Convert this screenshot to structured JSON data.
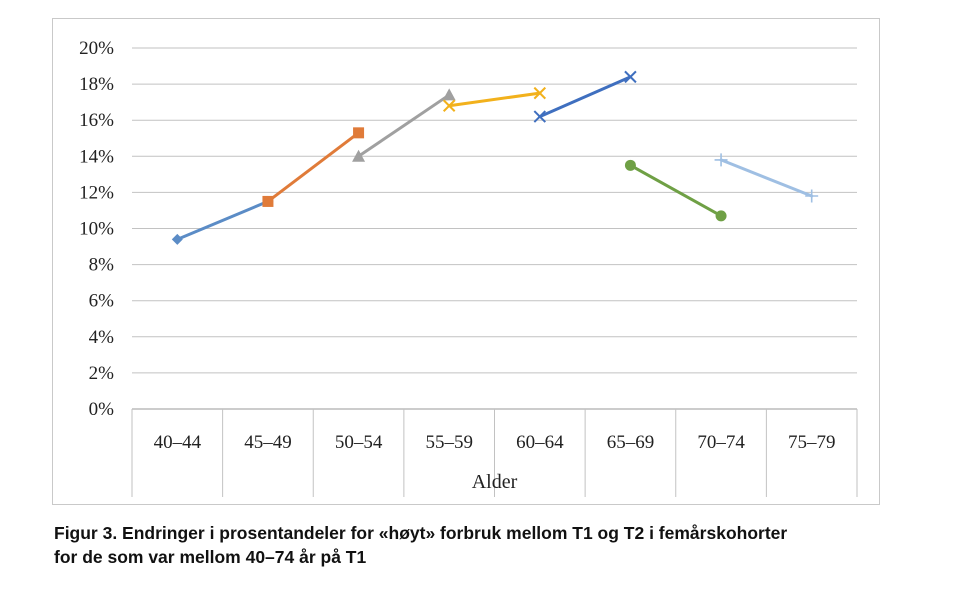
{
  "caption": {
    "line1": "Figur 3. Endringer i prosentandeler for «høyt» forbruk mellom T1 og T2 i femårskohorter",
    "line2": "for de som var mellom 40–74 år på T1"
  },
  "chart_data": {
    "type": "line",
    "categories": [
      "40–44",
      "45–49",
      "50–54",
      "55–59",
      "60–64",
      "65–69",
      "70–74",
      "75–79"
    ],
    "xlabel": "Alder",
    "ylabel": "",
    "ylim": [
      0,
      0.2
    ],
    "yticks": [
      "0%",
      "2%",
      "4%",
      "6%",
      "8%",
      "10%",
      "12%",
      "14%",
      "16%",
      "18%",
      "20%"
    ],
    "grid": true,
    "legend": "none",
    "series": [
      {
        "color": "#5b8cc6",
        "marker": "diamond",
        "points": [
          [
            "40–44",
            0.094
          ],
          [
            "45–49",
            0.115
          ]
        ]
      },
      {
        "color": "#e07b39",
        "marker": "square",
        "points": [
          [
            "45–49",
            0.115
          ],
          [
            "50–54",
            0.153
          ]
        ]
      },
      {
        "color": "#a0a0a0",
        "marker": "triangle",
        "points": [
          [
            "50–54",
            0.14
          ],
          [
            "55–59",
            0.174
          ]
        ]
      },
      {
        "color": "#f2b11c",
        "marker": "x",
        "points": [
          [
            "55–59",
            0.168
          ],
          [
            "60–64",
            0.175
          ]
        ]
      },
      {
        "color": "#3f6fbf",
        "marker": "x",
        "points": [
          [
            "60–64",
            0.162
          ],
          [
            "65–69",
            0.184
          ]
        ]
      },
      {
        "color": "#6fa045",
        "marker": "circle",
        "points": [
          [
            "65–69",
            0.135
          ],
          [
            "70–74",
            0.107
          ]
        ]
      },
      {
        "color": "#9fbfe3",
        "marker": "plus",
        "points": [
          [
            "70–74",
            0.138
          ],
          [
            "75–79",
            0.118
          ]
        ]
      }
    ]
  }
}
